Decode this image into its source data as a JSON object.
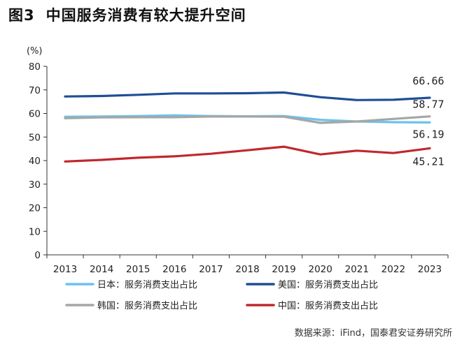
{
  "figure": {
    "number": "图3",
    "title": "中国服务消费有较大提升空间"
  },
  "source": "数据来源：iFind，国泰君安证券研究所",
  "chart_data": {
    "type": "line",
    "title": "中国服务消费有较大提升空间",
    "ylabel": "(%)",
    "xlabel": "",
    "x": [
      "2013",
      "2014",
      "2015",
      "2016",
      "2017",
      "2018",
      "2019",
      "2020",
      "2021",
      "2022",
      "2023"
    ],
    "yticks": [
      "0",
      "10",
      "20",
      "30",
      "40",
      "50",
      "60",
      "70",
      "80"
    ],
    "ylim": [
      0,
      80
    ],
    "grid": false,
    "legend_position": "bottom",
    "series": [
      {
        "name": "日本：服务消费支出占比",
        "color": "#6cc3ec",
        "values": [
          58.6,
          58.7,
          58.9,
          59.2,
          58.9,
          58.8,
          58.9,
          57.3,
          56.6,
          56.3,
          56.19
        ]
      },
      {
        "name": "美国：服务消费支出占比",
        "color": "#1f4e96",
        "values": [
          67.2,
          67.4,
          67.9,
          68.5,
          68.5,
          68.6,
          68.9,
          66.9,
          65.7,
          65.8,
          66.66
        ]
      },
      {
        "name": "韩国：服务消费支出占比",
        "color": "#a6a6a6",
        "values": [
          58.0,
          58.3,
          58.4,
          58.4,
          58.7,
          58.7,
          58.6,
          56.0,
          56.6,
          57.7,
          58.77
        ]
      },
      {
        "name": "中国：服务消费支出占比",
        "color": "#c0282d",
        "values": [
          39.6,
          40.3,
          41.2,
          41.8,
          42.9,
          44.4,
          45.9,
          42.6,
          44.2,
          43.2,
          45.21
        ]
      }
    ],
    "data_labels": [
      {
        "series": 1,
        "text": "66.66"
      },
      {
        "series": 2,
        "text": "58.77"
      },
      {
        "series": 0,
        "text": "56.19"
      },
      {
        "series": 3,
        "text": "45.21"
      }
    ]
  }
}
